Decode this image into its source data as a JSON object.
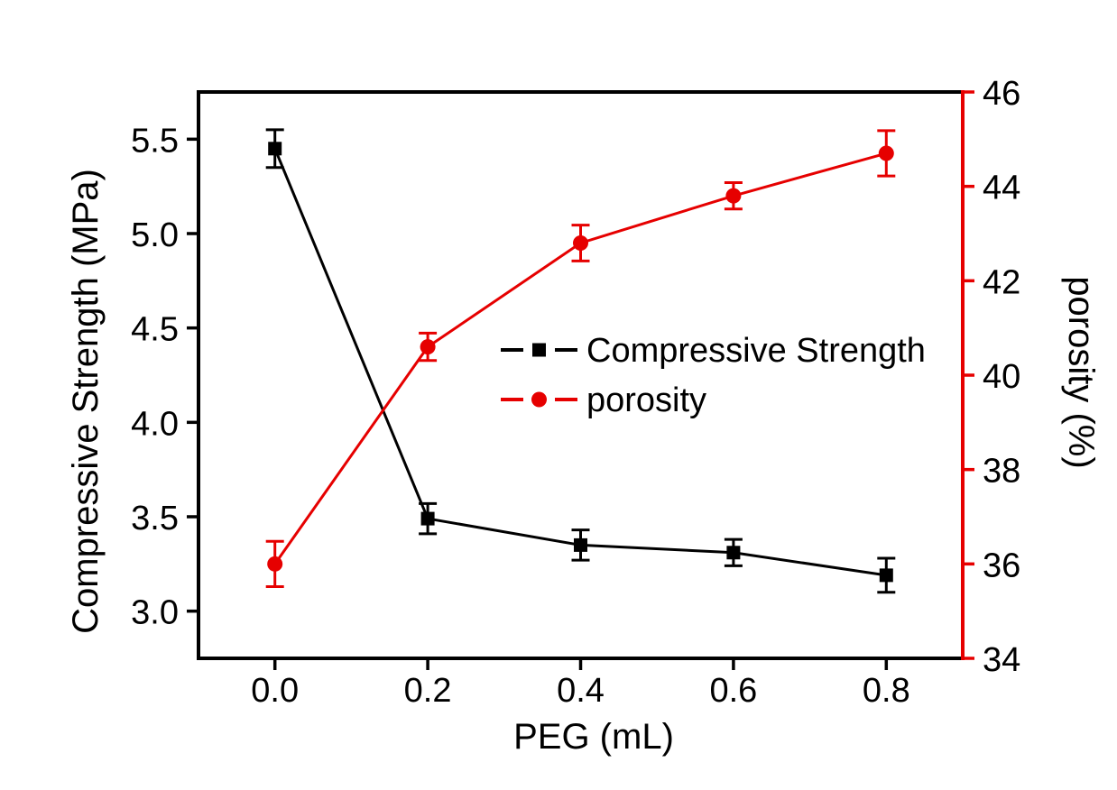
{
  "chart_data": {
    "type": "line",
    "title": "",
    "xlabel": "PEG (mL)",
    "ylabel_left": "Compressive Strength (MPa)",
    "ylabel_right": "porosity (%)",
    "x": [
      0.0,
      0.2,
      0.4,
      0.6,
      0.8
    ],
    "series": [
      {
        "name": "Compressive Strength",
        "axis": "left",
        "color": "#000000",
        "marker": "square",
        "values": [
          5.45,
          3.49,
          3.35,
          3.31,
          3.19
        ],
        "errors": [
          0.1,
          0.08,
          0.08,
          0.07,
          0.09
        ]
      },
      {
        "name": "porosity",
        "axis": "right",
        "color": "#e60000",
        "marker": "circle",
        "values": [
          36.0,
          40.6,
          42.8,
          43.8,
          44.7
        ],
        "errors": [
          0.48,
          0.29,
          0.38,
          0.28,
          0.48
        ]
      }
    ],
    "xlim": [
      -0.1,
      0.9
    ],
    "ylim_left": [
      2.75,
      5.75
    ],
    "ylim_right": [
      34,
      46
    ],
    "xticks": [
      "0.0",
      "0.2",
      "0.4",
      "0.6",
      "0.8"
    ],
    "yticks_left": [
      "3.0",
      "3.5",
      "4.0",
      "4.5",
      "5.0",
      "5.5"
    ],
    "yticks_right": [
      "34",
      "36",
      "38",
      "40",
      "42",
      "44",
      "46"
    ],
    "grid": false,
    "legend_position": "inside-center-right",
    "axis_color_left": "#000000",
    "axis_color_bottom": "#000000",
    "axis_color_top": "#000000",
    "axis_color_right": "#e60000",
    "background_color": "#ffffff"
  }
}
